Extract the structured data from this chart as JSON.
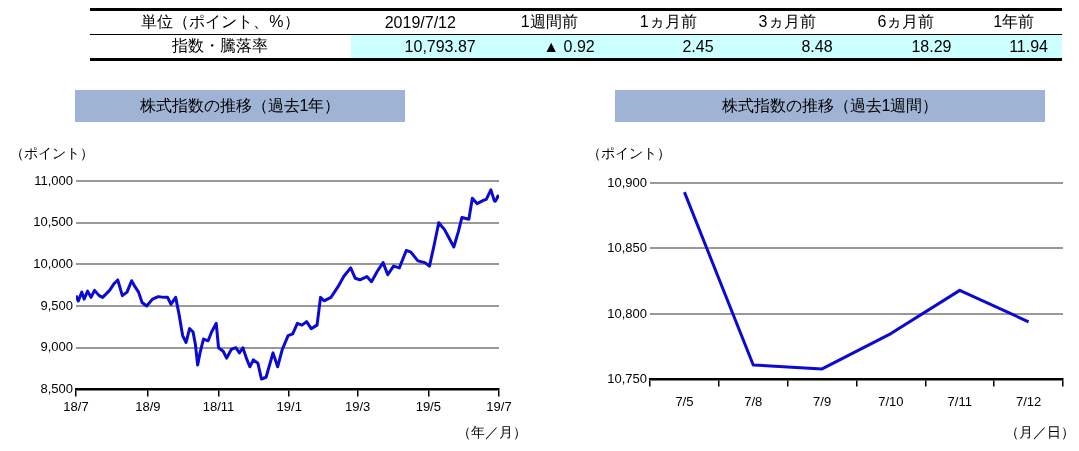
{
  "chart_data": [
    {
      "type": "other",
      "annotations": [
        "単位（ポイント、%）",
        "2019/7/12",
        "1週間前",
        "1ヵ月前",
        "3ヵ月前",
        "6ヵ月前",
        "1年前",
        "指数・騰落率",
        "10,793.87",
        "▲ 0.92",
        "2.45",
        "8.48",
        "18.29",
        "11.94"
      ]
    },
    {
      "type": "line",
      "title": "株式指数の推移（過去1年）",
      "ylabel": "（ポイント）",
      "xlabel": "（年／月）",
      "x": [
        "2018-07-12",
        "2018-07-14",
        "2018-07-17",
        "2018-07-19",
        "2018-07-22",
        "2018-07-25",
        "2018-07-28",
        "2018-08-01",
        "2018-08-04",
        "2018-08-10",
        "2018-08-14",
        "2018-08-17",
        "2018-08-21",
        "2018-08-25",
        "2018-08-29",
        "2018-09-01",
        "2018-09-04",
        "2018-09-07",
        "2018-09-11",
        "2018-09-16",
        "2018-09-21",
        "2018-09-26",
        "2018-09-29",
        "2018-10-02",
        "2018-10-06",
        "2018-10-09",
        "2018-10-12",
        "2018-10-15",
        "2018-10-18",
        "2018-10-21",
        "2018-10-23",
        "2018-10-25",
        "2018-10-27",
        "2018-10-30",
        "2018-11-03",
        "2018-11-06",
        "2018-11-10",
        "2018-11-12",
        "2018-11-16",
        "2018-11-19",
        "2018-11-23",
        "2018-11-27",
        "2018-11-30",
        "2018-12-03",
        "2018-12-06",
        "2018-12-09",
        "2018-12-12",
        "2018-12-16",
        "2018-12-19",
        "2018-12-23",
        "2018-12-29",
        "2019-01-02",
        "2019-01-06",
        "2019-01-11",
        "2019-01-15",
        "2019-01-19",
        "2019-01-23",
        "2019-01-27",
        "2019-01-31",
        "2019-02-05",
        "2019-02-08",
        "2019-02-11",
        "2019-02-17",
        "2019-02-23",
        "2019-02-28",
        "2019-03-06",
        "2019-03-10",
        "2019-03-14",
        "2019-03-20",
        "2019-03-24",
        "2019-03-29",
        "2019-04-03",
        "2019-04-07",
        "2019-04-12",
        "2019-04-17",
        "2019-04-23",
        "2019-04-27",
        "2019-05-03",
        "2019-05-09",
        "2019-05-13",
        "2019-05-17",
        "2019-05-21",
        "2019-05-26",
        "2019-05-30",
        "2019-06-03",
        "2019-06-07",
        "2019-06-10",
        "2019-06-16",
        "2019-06-19",
        "2019-06-23",
        "2019-06-29",
        "2019-07-01",
        "2019-07-05",
        "2019-07-08",
        "2019-07-09",
        "2019-07-10",
        "2019-07-11",
        "2019-07-12"
      ],
      "series": [
        {
          "color": "#0a0ad2",
          "values": [
            9625,
            9560,
            9667,
            9583,
            9679,
            9604,
            9688,
            9625,
            9604,
            9688,
            9771,
            9813,
            9625,
            9667,
            9804,
            9729,
            9667,
            9542,
            9500,
            9583,
            9613,
            9604,
            9604,
            9521,
            9604,
            9396,
            9146,
            9063,
            9229,
            9188,
            9042,
            8792,
            8938,
            9104,
            9083,
            9188,
            9292,
            9000,
            8958,
            8875,
            8979,
            9000,
            8938,
            9000,
            8875,
            8771,
            8854,
            8813,
            8625,
            8646,
            8938,
            8771,
            8979,
            9146,
            9167,
            9292,
            9271,
            9313,
            9229,
            9271,
            9604,
            9563,
            9604,
            9729,
            9854,
            9958,
            9833,
            9813,
            9854,
            9792,
            9917,
            10021,
            9875,
            9979,
            9958,
            10167,
            10146,
            10042,
            10021,
            9979,
            10229,
            10500,
            10417,
            10313,
            10208,
            10396,
            10563,
            10542,
            10792,
            10729,
            10771,
            10780,
            10893,
            10761,
            10758,
            10785,
            10818,
            10794
          ]
        }
      ],
      "xlim": [
        "2018-07-12",
        "2019-07-12"
      ],
      "xticks": [
        {
          "value": "2018-07-12",
          "label": "18/7"
        },
        {
          "value": "2018-09-12",
          "label": "18/9"
        },
        {
          "value": "2018-11-12",
          "label": "18/11"
        },
        {
          "value": "2019-01-12",
          "label": "19/1"
        },
        {
          "value": "2019-03-12",
          "label": "19/3"
        },
        {
          "value": "2019-05-12",
          "label": "19/5"
        },
        {
          "value": "2019-07-12",
          "label": "19/7"
        }
      ],
      "ylim": [
        8500,
        11000
      ],
      "yticks": [
        {
          "value": 8500,
          "label": "8,500"
        },
        {
          "value": 9000,
          "label": "9,000"
        },
        {
          "value": 9500,
          "label": "9,500"
        },
        {
          "value": 10000,
          "label": "10,000"
        },
        {
          "value": 10500,
          "label": "10,500"
        },
        {
          "value": 11000,
          "label": "11,000"
        }
      ],
      "grid": "y",
      "marker": "none"
    },
    {
      "type": "line",
      "title": "株式指数の推移（過去1週間）",
      "ylabel": "（ポイント）",
      "xlabel": "（月／日）",
      "categories": [
        "7/5",
        "7/8",
        "7/9",
        "7/10",
        "7/11",
        "7/12"
      ],
      "series": [
        {
          "color": "#0a0ad2",
          "values": [
            10893,
            10761,
            10758,
            10785,
            10818,
            10794
          ]
        }
      ],
      "ylim": [
        10750,
        10900
      ],
      "yticks": [
        {
          "value": 10750,
          "label": "10,750"
        },
        {
          "value": 10800,
          "label": "10,800"
        },
        {
          "value": 10850,
          "label": "10,850"
        },
        {
          "value": 10900,
          "label": "10,900"
        }
      ],
      "grid": "y",
      "marker": "none"
    }
  ]
}
